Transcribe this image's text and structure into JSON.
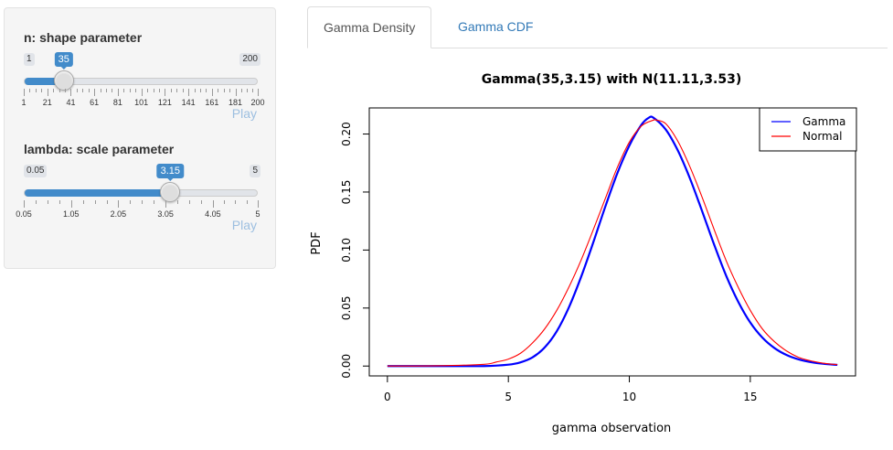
{
  "sidebar": {
    "shape": {
      "label": "n: shape parameter",
      "min": 1,
      "max": 200,
      "value": 35,
      "min_label": "1",
      "max_label": "200",
      "value_label": "35",
      "tick_labels": [
        "1",
        "21",
        "41",
        "61",
        "81",
        "101",
        "121",
        "141",
        "161",
        "181",
        "200"
      ],
      "play_label": "Play"
    },
    "scale": {
      "label": "lambda: scale parameter",
      "min": 0.05,
      "max": 5,
      "value": 3.15,
      "min_label": "0.05",
      "max_label": "5",
      "value_label": "3.15",
      "tick_labels": [
        "0.05",
        "1.05",
        "2.05",
        "3.05",
        "4.05",
        "5"
      ],
      "play_label": "Play"
    }
  },
  "tabs": [
    {
      "label": "Gamma Density",
      "active": true
    },
    {
      "label": "Gamma CDF",
      "active": false
    }
  ],
  "colors": {
    "accent": "#428bca",
    "tab_link": "#337ab7",
    "gamma_line": "#0000ff",
    "normal_line": "#ff0000"
  },
  "chart_data": {
    "type": "line",
    "title": "Gamma(35,3.15) with N(11.11,3.53)",
    "xlabel": "gamma observation",
    "ylabel": "PDF",
    "xlim": [
      0,
      18.6
    ],
    "ylim": [
      0,
      0.215
    ],
    "xticks": [
      0,
      5,
      10,
      15
    ],
    "xtick_labels": [
      "0",
      "5",
      "10",
      "15"
    ],
    "yticks": [
      0,
      0.05,
      0.1,
      0.15,
      0.2
    ],
    "ytick_labels": [
      "0.00",
      "0.05",
      "0.10",
      "0.15",
      "0.20"
    ],
    "legend": {
      "position": "top-right",
      "entries": [
        "Gamma",
        "Normal"
      ]
    },
    "grid": false,
    "series": [
      {
        "name": "Gamma",
        "color": "#0000ff",
        "x": [
          0,
          2,
          4,
          5,
          5.5,
          6,
          6.5,
          7,
          7.5,
          8,
          8.5,
          9,
          9.5,
          10,
          10.5,
          10.8,
          11,
          11.5,
          12,
          12.5,
          13,
          13.5,
          14,
          14.5,
          15,
          15.5,
          16,
          16.5,
          17,
          17.5,
          18,
          18.6
        ],
        "y": [
          0,
          0,
          0,
          0.0012,
          0.0032,
          0.0075,
          0.016,
          0.03,
          0.0505,
          0.0765,
          0.106,
          0.137,
          0.166,
          0.19,
          0.208,
          0.214,
          0.214,
          0.204,
          0.186,
          0.162,
          0.134,
          0.105,
          0.078,
          0.0555,
          0.0375,
          0.0245,
          0.0155,
          0.0095,
          0.0057,
          0.0034,
          0.002,
          0.001
        ]
      },
      {
        "name": "Normal",
        "color": "#ff0000",
        "x": [
          0,
          2,
          4,
          4.5,
          5,
          5.5,
          6,
          6.5,
          7,
          7.5,
          8,
          8.5,
          9,
          9.5,
          10,
          10.5,
          11,
          11.11,
          11.5,
          12,
          12.5,
          13,
          13.5,
          14,
          14.5,
          15,
          15.5,
          16,
          16.5,
          17,
          17.5,
          18,
          18.6
        ],
        "y": [
          0,
          0.0002,
          0.0015,
          0.0035,
          0.006,
          0.011,
          0.02,
          0.032,
          0.048,
          0.068,
          0.091,
          0.117,
          0.144,
          0.171,
          0.193,
          0.207,
          0.212,
          0.212,
          0.209,
          0.194,
          0.172,
          0.146,
          0.118,
          0.091,
          0.068,
          0.048,
          0.032,
          0.021,
          0.013,
          0.0075,
          0.0045,
          0.0025,
          0.0012
        ]
      }
    ]
  }
}
